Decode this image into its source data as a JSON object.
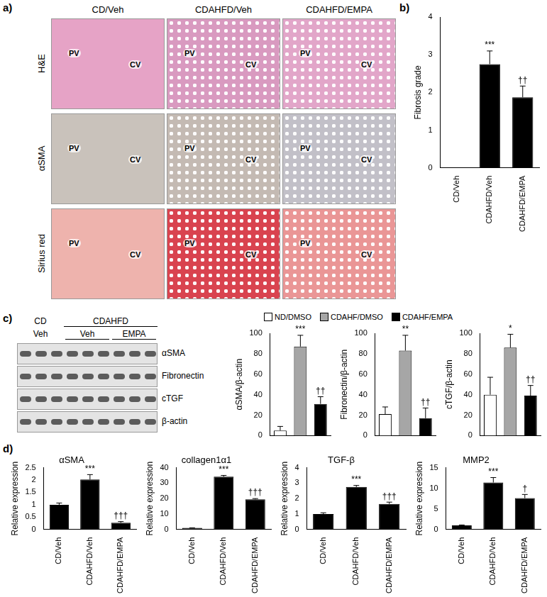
{
  "figure": {
    "panel_labels": [
      "a)",
      "b)",
      "c)",
      "d)"
    ],
    "panel_a": {
      "columns": [
        "CD/Veh",
        "CDAHFD/Veh",
        "CDAHFD/EMPA"
      ],
      "rows": [
        "H&E",
        "αSMA",
        "Sirius red"
      ],
      "image_labels": [
        "PV",
        "CV"
      ]
    },
    "panel_c_blot": {
      "header_top": [
        "CD",
        "CDAHFD"
      ],
      "header_bottom": [
        "Veh",
        "Veh",
        "EMPA"
      ],
      "rows": [
        "αSMA",
        "Fibronectin",
        "cTGF",
        "β-actin"
      ]
    },
    "panel_c_legend": [
      {
        "name": "ND/DMSO",
        "color": "#ffffff"
      },
      {
        "name": "CDAHF/DMSO",
        "color": "#a6a6a6"
      },
      {
        "name": "CDAHF/EMPA",
        "color": "#000000"
      }
    ]
  },
  "chart_data": [
    {
      "type": "bar",
      "y_label": "Fibrosis grade",
      "categories": [
        "CD/Veh",
        "CDAHFD/Veh",
        "CDAHFD/EMPA"
      ],
      "values": [
        0,
        2.75,
        1.87
      ],
      "errors": [
        0,
        0.35,
        0.3
      ],
      "significance": [
        null,
        "***",
        "††"
      ],
      "color": "#000000",
      "ylim": [
        0,
        4
      ],
      "yticks": [
        0,
        1,
        2,
        3,
        4
      ],
      "grid": false
    },
    {
      "type": "bar",
      "y_label": "αSMA/β-actin",
      "categories": [
        null,
        null,
        null
      ],
      "values": [
        5,
        87,
        31
      ],
      "errors": [
        4,
        11,
        7
      ],
      "significance": [
        null,
        "***",
        "††"
      ],
      "colors": [
        "#ffffff",
        "#a6a6a6",
        "#000000"
      ],
      "ylim": [
        0,
        100
      ],
      "yticks": [
        0,
        20,
        40,
        60,
        80,
        100
      ],
      "grid": false,
      "tick_labels": "y"
    },
    {
      "type": "bar",
      "y_label": "Fibronectin/β-actin",
      "categories": [
        null,
        null,
        null
      ],
      "values": [
        21,
        83,
        17
      ],
      "errors": [
        7,
        15,
        10
      ],
      "significance": [
        null,
        "**",
        "††"
      ],
      "colors": [
        "#ffffff",
        "#a6a6a6",
        "#000000"
      ],
      "ylim": [
        0,
        100
      ],
      "yticks": [
        0,
        20,
        40,
        60,
        80,
        100
      ],
      "grid": false,
      "tick_labels": "y"
    },
    {
      "type": "bar",
      "y_label": "cTGF/β-actin",
      "categories": [
        null,
        null,
        null
      ],
      "values": [
        40,
        86,
        39
      ],
      "errors": [
        17,
        13,
        10
      ],
      "significance": [
        null,
        "*",
        "††"
      ],
      "colors": [
        "#ffffff",
        "#a6a6a6",
        "#000000"
      ],
      "ylim": [
        0,
        100
      ],
      "yticks": [
        0,
        20,
        40,
        60,
        80,
        100
      ],
      "grid": false,
      "tick_labels": "y"
    },
    {
      "type": "bar",
      "title": "αSMA",
      "y_label": "Relative expression",
      "categories": [
        "CD/Veh",
        "CDAHFD/Veh",
        "CDAHFD/EMPA"
      ],
      "values": [
        1.0,
        2.02,
        0.27
      ],
      "errors": [
        0.07,
        0.2,
        0.05
      ],
      "significance": [
        null,
        "***",
        "†††"
      ],
      "color": "#000000",
      "ylim": [
        0,
        2.5
      ],
      "yticks": [
        0,
        0.5,
        1,
        1.5,
        2,
        2.5
      ],
      "grid": false
    },
    {
      "type": "bar",
      "title": "collagen1α1",
      "y_label": "Relative expression",
      "categories": [
        "CD/Veh",
        "CDAHFD/Veh",
        "CDAHFD/EMPA"
      ],
      "values": [
        1.0,
        34.2,
        19.5
      ],
      "errors": [
        0.1,
        0.8,
        0.5
      ],
      "significance": [
        null,
        "***",
        "†††"
      ],
      "color": "#000000",
      "ylim": [
        0,
        40
      ],
      "yticks": [
        0,
        10,
        20,
        30,
        40
      ],
      "grid": false
    },
    {
      "type": "bar",
      "title": "TGF-β",
      "y_label": "Relative expression",
      "categories": [
        "CD/Veh",
        "CDAHFD/Veh",
        "CDAHFD/EMPA"
      ],
      "values": [
        1.0,
        2.75,
        1.65
      ],
      "errors": [
        0.08,
        0.1,
        0.12
      ],
      "significance": [
        null,
        "***",
        "†††"
      ],
      "color": "#000000",
      "ylim": [
        0,
        4
      ],
      "yticks": [
        0,
        1,
        2,
        3,
        4
      ],
      "grid": false
    },
    {
      "type": "bar",
      "title": "MMP2",
      "y_label": "Relative expression",
      "categories": [
        "CD/Veh",
        "CDAHFD/Veh",
        "CDAHFD/EMPA"
      ],
      "values": [
        1.0,
        11.4,
        7.6
      ],
      "errors": [
        0.1,
        1.2,
        0.9
      ],
      "significance": [
        null,
        "***",
        "†"
      ],
      "color": "#000000",
      "ylim": [
        0,
        15
      ],
      "yticks": [
        0,
        5,
        10,
        15
      ],
      "grid": false
    }
  ]
}
